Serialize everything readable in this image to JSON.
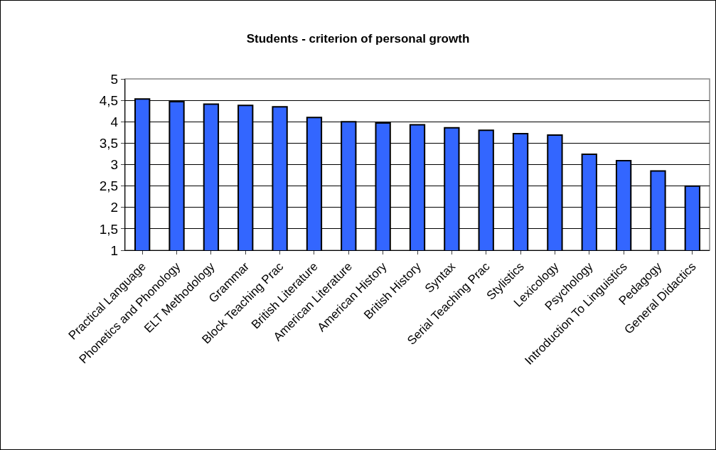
{
  "chart_data": {
    "type": "bar",
    "title": "Students - criterion of personal growth",
    "categories": [
      "Practical Language",
      "Phonetics and Phonology",
      "ELT Methodology",
      "Grammar",
      "Block Teaching Prac",
      "British Literature",
      "American Literature",
      "American History",
      "British History",
      "Syntax",
      "Serial Teaching Prac",
      "Stylistics",
      "Lexicology",
      "Psychology",
      "Introduction To Linguistics",
      "Pedagogy",
      "General Didactics"
    ],
    "values": [
      4.53,
      4.47,
      4.41,
      4.38,
      4.35,
      4.1,
      4.0,
      3.97,
      3.93,
      3.86,
      3.8,
      3.72,
      3.69,
      3.24,
      3.09,
      2.85,
      2.5
    ],
    "color": "#3366ff",
    "ylim": [
      1,
      5
    ],
    "yticks": [
      {
        "value": 1,
        "label": "1"
      },
      {
        "value": 1.5,
        "label": "1,5"
      },
      {
        "value": 2,
        "label": "2"
      },
      {
        "value": 2.5,
        "label": "2,5"
      },
      {
        "value": 3,
        "label": "3"
      },
      {
        "value": 3.5,
        "label": "3,5"
      },
      {
        "value": 4,
        "label": "4"
      },
      {
        "value": 4.5,
        "label": "4,5"
      },
      {
        "value": 5,
        "label": "5"
      }
    ],
    "grid": "y"
  }
}
